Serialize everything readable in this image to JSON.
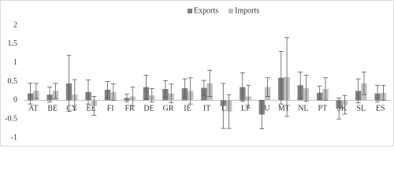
{
  "chart_data": {
    "type": "bar",
    "legend": "top",
    "categories": [
      "AT",
      "BE",
      "CY",
      "EE",
      "FI",
      "FR",
      "DE",
      "GR",
      "IE",
      "IT",
      "LV",
      "LT",
      "LU",
      "MT",
      "NL",
      "PT",
      "SK",
      "SL",
      "ES"
    ],
    "series": [
      {
        "name": "Exports",
        "color": "#808080",
        "values": [
          0.18,
          0.15,
          0.45,
          0.22,
          0.28,
          0.06,
          0.35,
          0.3,
          0.32,
          0.33,
          -0.15,
          0.35,
          -0.38,
          0.6,
          0.4,
          0.2,
          -0.22,
          0.25,
          0.18
        ],
        "errors": [
          0.28,
          0.2,
          0.75,
          0.32,
          0.22,
          0.1,
          0.32,
          0.22,
          0.25,
          0.2,
          0.6,
          0.38,
          0.38,
          0.7,
          0.35,
          0.18,
          0.28,
          0.32,
          0.22
        ]
      },
      {
        "name": "Imports",
        "color": "#c0c0c0",
        "values": [
          0.25,
          0.25,
          0.15,
          -0.15,
          0.22,
          0.1,
          0.13,
          0.18,
          0.25,
          0.45,
          -0.3,
          0.1,
          0.35,
          0.62,
          0.32,
          0.3,
          -0.12,
          0.45,
          0.2
        ],
        "errors": [
          0.2,
          0.2,
          0.4,
          0.25,
          0.22,
          0.25,
          0.18,
          0.25,
          0.35,
          0.35,
          0.45,
          0.3,
          0.25,
          1.05,
          0.35,
          0.3,
          0.25,
          0.3,
          0.2
        ]
      }
    ],
    "ylim": [
      -1,
      2
    ],
    "yticks": [
      -1,
      -0.5,
      0,
      0.5,
      1,
      1.5,
      2
    ]
  }
}
